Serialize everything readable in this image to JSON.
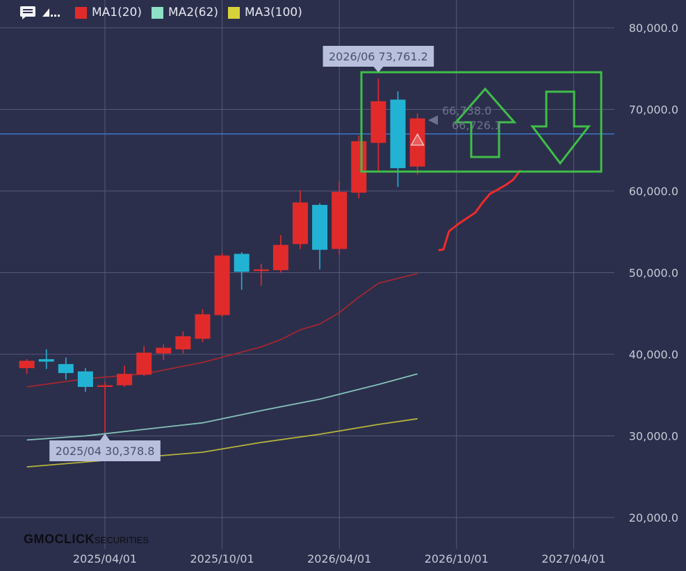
{
  "legend": {
    "items": [
      {
        "label": "MA1(20)",
        "color": "#e12b2b"
      },
      {
        "label": "MA2(62)",
        "color": "#8ee0c6"
      },
      {
        "label": "MA3(100)",
        "color": "#d8d23a"
      }
    ]
  },
  "logo": {
    "brand": "GMOCLICK",
    "suffix": "SECURITIES"
  },
  "chart_data": {
    "type": "candlestick",
    "interval": "monthly",
    "y_ticks": [
      "80,000.0",
      "70,000.0",
      "60,000.0",
      "50,000.0",
      "40,000.0",
      "30,000.0",
      "20,000.0"
    ],
    "x_ticks": [
      "2025/04/01",
      "2025/10/01",
      "2026/04/01",
      "2026/10/01",
      "2027/04/01"
    ],
    "ylim": [
      18500,
      83500
    ],
    "candles": [
      {
        "date": "2024/12",
        "open": 38300,
        "high": 39400,
        "low": 37600,
        "close": 39200
      },
      {
        "date": "2025/01",
        "open": 39400,
        "high": 40600,
        "low": 38200,
        "close": 39100
      },
      {
        "date": "2025/02",
        "open": 38800,
        "high": 39600,
        "low": 36900,
        "close": 37700
      },
      {
        "date": "2025/03",
        "open": 37900,
        "high": 38300,
        "low": 35400,
        "close": 36000
      },
      {
        "date": "2025/04",
        "open": 36000,
        "high": 36600,
        "low": 30378.8,
        "close": 36200
      },
      {
        "date": "2025/05",
        "open": 36200,
        "high": 38600,
        "low": 36000,
        "close": 37600
      },
      {
        "date": "2025/06",
        "open": 37500,
        "high": 41000,
        "low": 37300,
        "close": 40200
      },
      {
        "date": "2025/07",
        "open": 40100,
        "high": 41200,
        "low": 39300,
        "close": 40800
      },
      {
        "date": "2025/08",
        "open": 40600,
        "high": 42800,
        "low": 40100,
        "close": 42200
      },
      {
        "date": "2025/09",
        "open": 41900,
        "high": 45500,
        "low": 41500,
        "close": 44900
      },
      {
        "date": "2025/10",
        "open": 44800,
        "high": 52400,
        "low": 44600,
        "close": 52100
      },
      {
        "date": "2025/11",
        "open": 52300,
        "high": 52500,
        "low": 47900,
        "close": 50100
      },
      {
        "date": "2025/12",
        "open": 50200,
        "high": 51100,
        "low": 48400,
        "close": 50400
      },
      {
        "date": "2026/01",
        "open": 50300,
        "high": 54600,
        "low": 50000,
        "close": 53400
      },
      {
        "date": "2026/02",
        "open": 53500,
        "high": 60100,
        "low": 52900,
        "close": 58600
      },
      {
        "date": "2026/03",
        "open": 58300,
        "high": 58500,
        "low": 50400,
        "close": 52800
      },
      {
        "date": "2026/04",
        "open": 52900,
        "high": 61200,
        "low": 52200,
        "close": 59900
      },
      {
        "date": "2026/05",
        "open": 59800,
        "high": 66800,
        "low": 59100,
        "close": 66100
      },
      {
        "date": "2026/06",
        "open": 65900,
        "high": 73761.2,
        "low": 62500,
        "close": 71000
      },
      {
        "date": "2026/07",
        "open": 71200,
        "high": 72200,
        "low": 60500,
        "close": 62800
      },
      {
        "date": "2026/08",
        "open": 63000,
        "high": 69500,
        "low": 62000,
        "close": 68900
      }
    ],
    "ma1": [
      [
        "2024/12",
        36000
      ],
      [
        "2025/03",
        37000
      ],
      [
        "2025/06",
        37600
      ],
      [
        "2025/09",
        39000
      ],
      [
        "2025/12",
        40900
      ],
      [
        "2026/01",
        41800
      ],
      [
        "2026/02",
        43000
      ],
      [
        "2026/03",
        43700
      ],
      [
        "2026/04",
        45100
      ],
      [
        "2026/05",
        47000
      ],
      [
        "2026/06",
        48700
      ],
      [
        "2026/08",
        49900
      ]
    ],
    "ma2": [
      [
        "2024/12",
        29500
      ],
      [
        "2025/03",
        30000
      ],
      [
        "2025/06",
        30800
      ],
      [
        "2025/09",
        31600
      ],
      [
        "2025/12",
        33100
      ],
      [
        "2026/03",
        34500
      ],
      [
        "2026/06",
        36300
      ],
      [
        "2026/08",
        37600
      ]
    ],
    "ma3": [
      [
        "2024/12",
        26200
      ],
      [
        "2025/03",
        26800
      ],
      [
        "2025/06",
        27400
      ],
      [
        "2025/09",
        28000
      ],
      [
        "2025/12",
        29200
      ],
      [
        "2026/03",
        30200
      ],
      [
        "2026/06",
        31400
      ],
      [
        "2026/08",
        32100
      ]
    ],
    "annotations": {
      "high_label": "2026/06 73,761.2",
      "low_label": "2025/04 30,378.8",
      "price_line": 67000,
      "current_price_a": "66,738.0",
      "current_price_b": "66,726.1"
    },
    "drawing_path": [
      [
        "2026/09",
        52700
      ],
      [
        "2026/10",
        55000
      ],
      [
        "2026/11",
        57400
      ],
      [
        "2026/12",
        59800
      ],
      [
        "2027/01",
        61500
      ],
      [
        "2027/01",
        62500
      ]
    ],
    "colors": {
      "up": "#e12b2b",
      "down": "#22b3d4",
      "grid": "#555a78",
      "axis_text": "#c8cad6",
      "price_line": "#3a77c9",
      "drawing": "#f02a2a",
      "overlay": "#3fbf47"
    }
  }
}
